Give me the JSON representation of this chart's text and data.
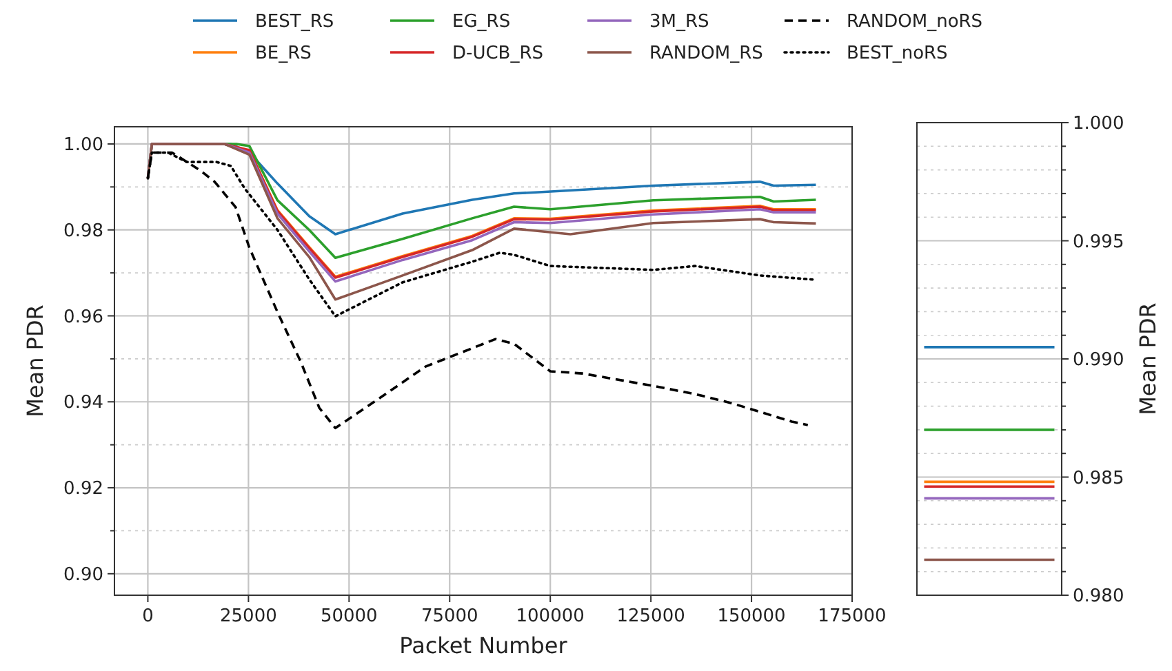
{
  "chart_data": [
    {
      "type": "line",
      "xlabel": "Packet Number",
      "ylabel": "Mean PDR",
      "xlim": [
        -8300,
        175000
      ],
      "ylim": [
        0.895,
        1.004
      ],
      "xticks": [
        0,
        25000,
        50000,
        75000,
        100000,
        125000,
        150000,
        175000
      ],
      "yticks": [
        {
          "value": 0.9,
          "label": "0.90"
        },
        {
          "value": 0.91,
          "label": null
        },
        {
          "value": 0.92,
          "label": "0.92"
        },
        {
          "value": 0.93,
          "label": null
        },
        {
          "value": 0.94,
          "label": "0.94"
        },
        {
          "value": 0.95,
          "label": null
        },
        {
          "value": 0.96,
          "label": "0.96"
        },
        {
          "value": 0.97,
          "label": null
        },
        {
          "value": 0.98,
          "label": "0.98"
        },
        {
          "value": 0.99,
          "label": null
        },
        {
          "value": 1.0,
          "label": "1.00"
        }
      ],
      "grid": true,
      "legend": "top",
      "line_style": "solid",
      "series": [
        {
          "name": "BEST_RS",
          "color": "#1f77b4",
          "x": [
            0,
            1000,
            20600,
            25250,
            32200,
            40100,
            46600,
            63300,
            80600,
            91000,
            97900,
            125600,
            152100,
            155500,
            166000
          ],
          "values": [
            0.992,
            1.0,
            1.0,
            0.998,
            0.9908,
            0.9832,
            0.979,
            0.9838,
            0.987,
            0.9885,
            0.9888,
            0.9903,
            0.9912,
            0.9903,
            0.9905
          ]
        },
        {
          "name": "BE_RS",
          "color": "#ff7f0e",
          "x": [
            19000,
            25250,
            32200,
            40100,
            46600,
            63300,
            80600,
            91000,
            100000,
            125600,
            152100,
            155500,
            166000
          ],
          "values": [
            1.0,
            0.9985,
            0.9846,
            0.976,
            0.9691,
            0.9739,
            0.9786,
            0.9827,
            0.9826,
            0.9845,
            0.9856,
            0.9848,
            0.9848
          ]
        },
        {
          "name": "EG_RS",
          "color": "#2ca02c",
          "x": [
            0,
            1000,
            22000,
            25250,
            32200,
            40100,
            46600,
            63300,
            80600,
            91000,
            100000,
            125600,
            152100,
            155500,
            166000
          ],
          "values": [
            0.992,
            1.0,
            1.0,
            0.9995,
            0.9869,
            0.98,
            0.9735,
            0.9779,
            0.9827,
            0.9854,
            0.9848,
            0.9869,
            0.9877,
            0.9866,
            0.987
          ]
        },
        {
          "name": "D-UCB_RS",
          "color": "#d62728",
          "x": [
            0,
            1000,
            19000,
            25250,
            32200,
            40100,
            46600,
            63300,
            80600,
            91000,
            100000,
            125600,
            152100,
            155500,
            166000
          ],
          "values": [
            0.992,
            1.0,
            1.0,
            0.9985,
            0.9844,
            0.9758,
            0.9689,
            0.9737,
            0.9784,
            0.9825,
            0.9824,
            0.9843,
            0.9854,
            0.9846,
            0.9846
          ]
        },
        {
          "name": "3M_RS",
          "color": "#9467bd",
          "x": [
            0,
            1000,
            19000,
            25250,
            32200,
            40100,
            46600,
            63300,
            80600,
            91000,
            100000,
            125600,
            152100,
            155500,
            166000
          ],
          "values": [
            0.992,
            1.0,
            1.0,
            0.998,
            0.9838,
            0.975,
            0.968,
            0.973,
            0.9776,
            0.9818,
            0.9816,
            0.9836,
            0.9848,
            0.9841,
            0.9841
          ]
        },
        {
          "name": "RANDOM_RS",
          "color": "#8c564b",
          "x": [
            0,
            1000,
            19000,
            25250,
            32200,
            40100,
            46600,
            63300,
            80600,
            91000,
            105000,
            125600,
            152100,
            155500,
            166000
          ],
          "values": [
            0.992,
            1.0,
            1.0,
            0.9975,
            0.9827,
            0.9737,
            0.9638,
            0.9694,
            0.9753,
            0.9803,
            0.979,
            0.9816,
            0.9825,
            0.9818,
            0.9815
          ]
        },
        {
          "name": "RANDOM_noRS",
          "color": "#000000",
          "line_style": "dashed",
          "x": [
            0,
            1000,
            6000,
            13100,
            16600,
            21800,
            25250,
            32200,
            38000,
            42600,
            46600,
            57500,
            69000,
            86400,
            91000,
            100000,
            108000,
            125600,
            136000,
            145000,
            160000,
            164000
          ],
          "values": [
            0.992,
            0.998,
            0.998,
            0.9938,
            0.9912,
            0.9853,
            0.9758,
            0.9609,
            0.9493,
            0.9386,
            0.9339,
            0.9408,
            0.9482,
            0.9546,
            0.9535,
            0.9471,
            0.9466,
            0.9437,
            0.9418,
            0.9397,
            0.9354,
            0.9346
          ]
        },
        {
          "name": "BEST_noRS",
          "color": "#000000",
          "line_style": "dotted",
          "x": [
            0,
            1000,
            5000,
            9700,
            17100,
            20600,
            24100,
            32200,
            40100,
            46600,
            63300,
            80600,
            87500,
            91000,
            100000,
            125600,
            136000,
            152100,
            166000
          ],
          "values": [
            0.992,
            0.998,
            0.998,
            0.9958,
            0.9958,
            0.9949,
            0.9896,
            0.98,
            0.9685,
            0.9599,
            0.9678,
            0.9726,
            0.9747,
            0.9742,
            0.9716,
            0.9707,
            0.9716,
            0.9694,
            0.9684
          ]
        }
      ]
    },
    {
      "type": "line",
      "ylabel": "Mean PDR",
      "categories": [
        null,
        null,
        null,
        null,
        null,
        null,
        null,
        null,
        null,
        null
      ],
      "tick_labels": "y",
      "ylim": [
        0.98,
        1.0
      ],
      "yticks": [
        {
          "value": 0.98,
          "label": "0.980"
        },
        {
          "value": 0.981,
          "label": null
        },
        {
          "value": 0.982,
          "label": null
        },
        {
          "value": 0.983,
          "label": null
        },
        {
          "value": 0.984,
          "label": null
        },
        {
          "value": 0.985,
          "label": "0.985"
        },
        {
          "value": 0.986,
          "label": null
        },
        {
          "value": 0.987,
          "label": null
        },
        {
          "value": 0.988,
          "label": null
        },
        {
          "value": 0.989,
          "label": null
        },
        {
          "value": 0.99,
          "label": "0.990"
        },
        {
          "value": 0.991,
          "label": null
        },
        {
          "value": 0.992,
          "label": null
        },
        {
          "value": 0.993,
          "label": null
        },
        {
          "value": 0.994,
          "label": null
        },
        {
          "value": 0.995,
          "label": "0.995"
        },
        {
          "value": 0.996,
          "label": null
        },
        {
          "value": 0.997,
          "label": null
        },
        {
          "value": 0.998,
          "label": null
        },
        {
          "value": 0.999,
          "label": null
        },
        {
          "value": 1.0,
          "label": "1.000"
        }
      ],
      "grid": true,
      "series": [
        {
          "color": "#1f77b4",
          "values": [
            0.9905,
            0.9905,
            0.9905,
            0.9905,
            0.9905,
            0.9905,
            0.9905,
            0.9905,
            0.9905,
            0.9905
          ]
        },
        {
          "color": "#ff7f0e",
          "values": [
            0.9848,
            0.9848,
            0.9848,
            0.9848,
            0.9848,
            0.9848,
            0.9848,
            0.9848,
            0.9848,
            0.9848
          ]
        },
        {
          "color": "#2ca02c",
          "values": [
            0.987,
            0.987,
            0.987,
            0.987,
            0.987,
            0.987,
            0.987,
            0.987,
            0.987,
            0.987
          ]
        },
        {
          "color": "#d62728",
          "values": [
            0.9846,
            0.9846,
            0.9846,
            0.9846,
            0.9846,
            0.9846,
            0.9846,
            0.9846,
            0.9846,
            0.9846
          ]
        },
        {
          "color": "#9467bd",
          "values": [
            0.9841,
            0.9841,
            0.9841,
            0.9841,
            0.9841,
            0.9841,
            0.9841,
            0.9841,
            0.9841,
            0.9841
          ]
        },
        {
          "color": "#8c564b",
          "values": [
            0.9815,
            0.9815,
            0.9815,
            0.9815,
            0.9815,
            0.9815,
            0.9815,
            0.9815,
            0.9815,
            0.9815
          ]
        }
      ]
    }
  ]
}
